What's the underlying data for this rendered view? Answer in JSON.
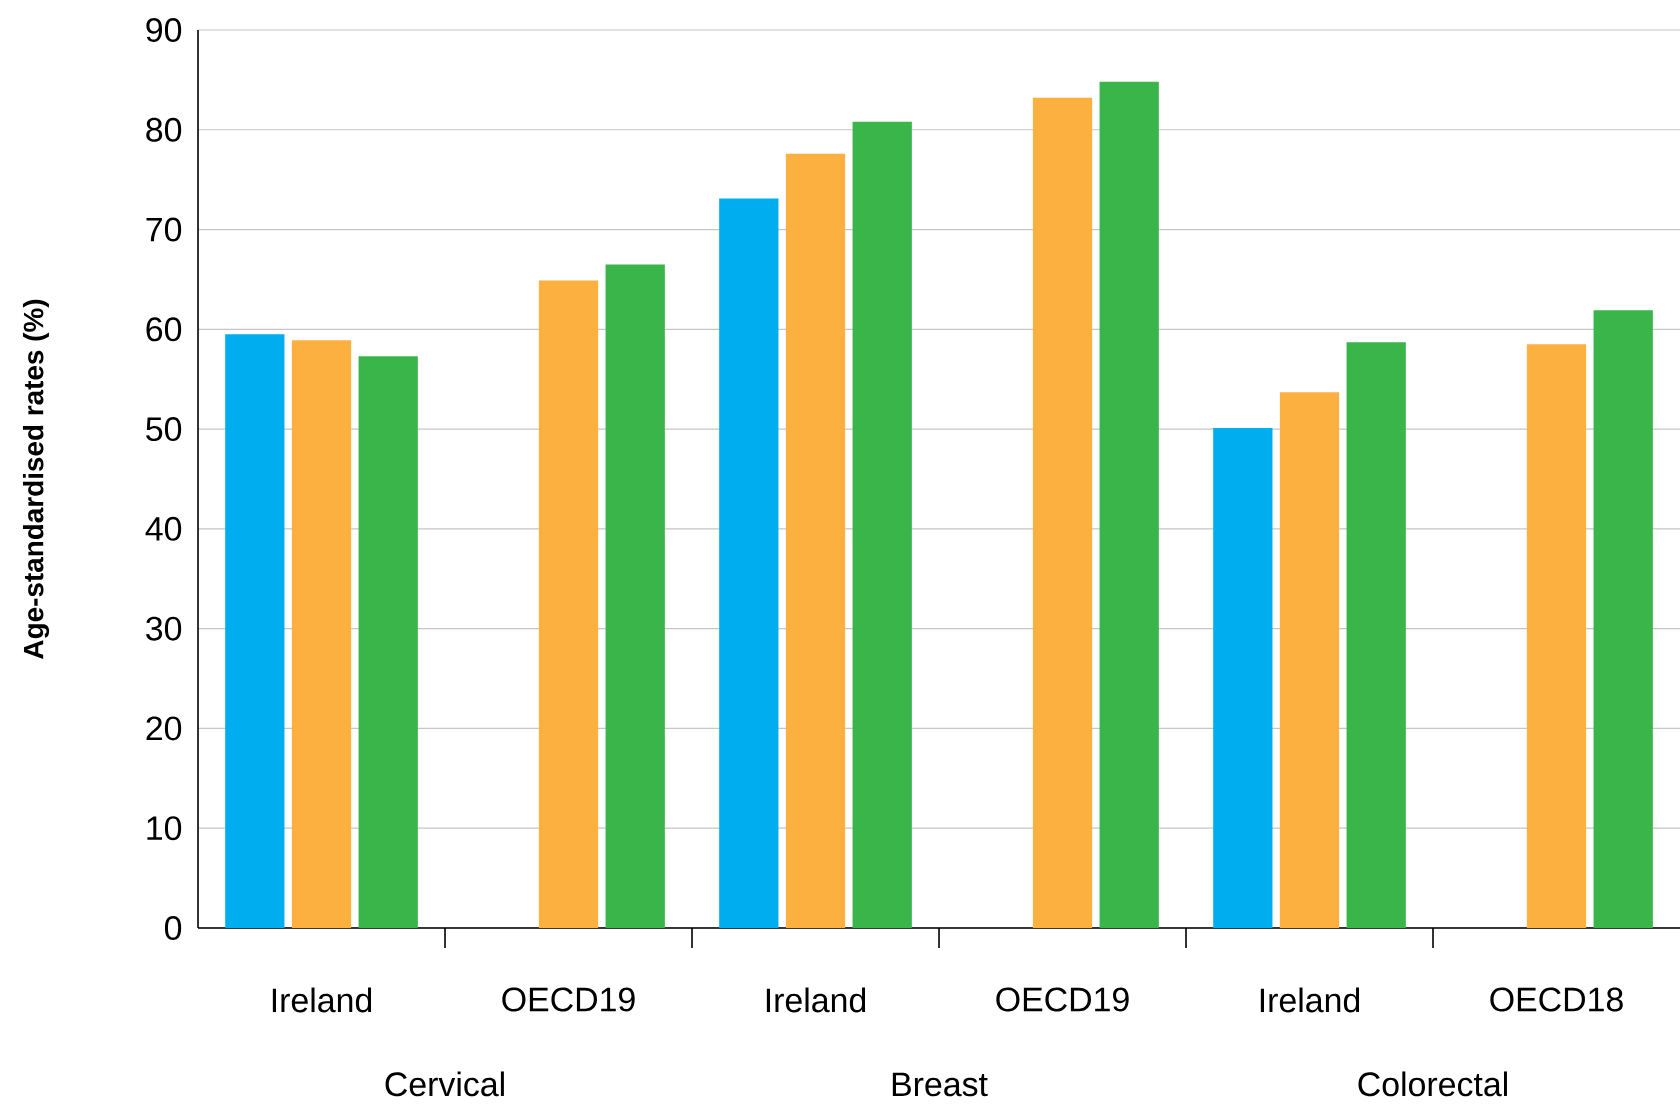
{
  "chart_data": {
    "type": "bar",
    "ylabel": "Age-standardised rates (%)",
    "categories": [
      "Ireland",
      "OECD19",
      "Ireland",
      "OECD19",
      "Ireland",
      "OECD18"
    ],
    "series": [
      {
        "color": "#00aeef",
        "values": [
          59.5,
          null,
          73.1,
          null,
          50.1,
          null
        ]
      },
      {
        "color": "#fbb040",
        "values": [
          58.9,
          64.9,
          77.6,
          83.2,
          53.7,
          58.5
        ]
      },
      {
        "color": "#39b54a",
        "values": [
          57.3,
          66.5,
          80.8,
          84.8,
          58.7,
          61.9
        ]
      }
    ],
    "annotations": [
      "Cervical",
      "Breast",
      "Colorectal"
    ],
    "ylim": [
      0,
      90
    ],
    "yticks": [
      0,
      10,
      20,
      30,
      40,
      50,
      60,
      70,
      80,
      90
    ],
    "grid": "y"
  }
}
